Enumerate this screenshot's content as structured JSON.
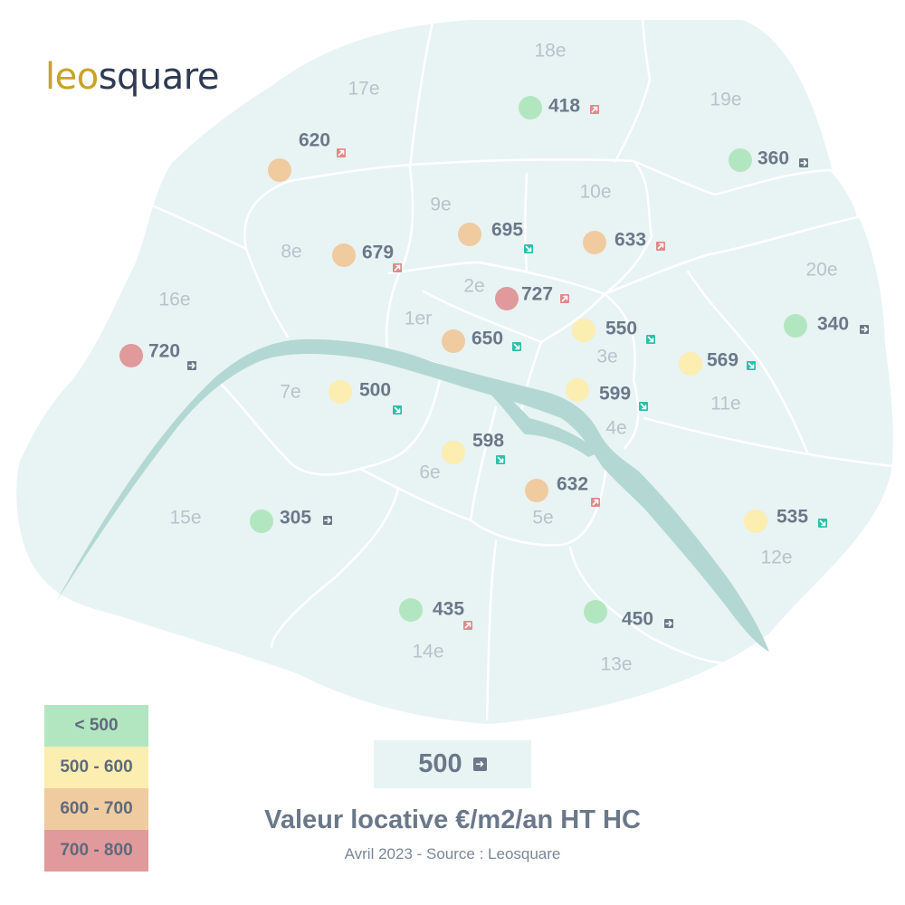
{
  "logo": {
    "part1": "leo",
    "part2": "square"
  },
  "colors": {
    "land": "#e8f3f4",
    "river": "#b3d8d4",
    "border": "#ffffff",
    "lt500": "#b2e6c0",
    "500_600": "#fcedb0",
    "600_700": "#f0cba0",
    "700_800": "#e09a9b",
    "up": "#e08a8a",
    "down": "#2fbfa8",
    "flat": "#6b7889"
  },
  "map": {
    "labels": [
      {
        "id": "18e",
        "text": "18e"
      },
      {
        "id": "17e",
        "text": "17e"
      },
      {
        "id": "19e",
        "text": "19e"
      },
      {
        "id": "9e",
        "text": "9e"
      },
      {
        "id": "10e",
        "text": "10e"
      },
      {
        "id": "8e",
        "text": "8e"
      },
      {
        "id": "16e",
        "text": "16e"
      },
      {
        "id": "2e",
        "text": "2e"
      },
      {
        "id": "20e",
        "text": "20e"
      },
      {
        "id": "1er",
        "text": "1er"
      },
      {
        "id": "3e",
        "text": "3e"
      },
      {
        "id": "7e",
        "text": "7e"
      },
      {
        "id": "11e",
        "text": "11e"
      },
      {
        "id": "4e",
        "text": "4e"
      },
      {
        "id": "6e",
        "text": "6e"
      },
      {
        "id": "15e",
        "text": "15e"
      },
      {
        "id": "5e",
        "text": "5e"
      },
      {
        "id": "12e",
        "text": "12e"
      },
      {
        "id": "14e",
        "text": "14e"
      },
      {
        "id": "13e",
        "text": "13e"
      }
    ],
    "markers": [
      {
        "arr": "18e",
        "value": "418",
        "band": "lt500",
        "trend": "up"
      },
      {
        "arr": "17e",
        "value": "620",
        "band": "600_700",
        "trend": "up"
      },
      {
        "arr": "19e",
        "value": "360",
        "band": "lt500",
        "trend": "flat"
      },
      {
        "arr": "9e",
        "value": "695",
        "band": "600_700",
        "trend": "down"
      },
      {
        "arr": "10e",
        "value": "633",
        "band": "600_700",
        "trend": "up"
      },
      {
        "arr": "8e",
        "value": "679",
        "band": "600_700",
        "trend": "up"
      },
      {
        "arr": "2e",
        "value": "727",
        "band": "700_800",
        "trend": "up"
      },
      {
        "arr": "20e",
        "value": "340",
        "band": "lt500",
        "trend": "flat"
      },
      {
        "arr": "16e",
        "value": "720",
        "band": "700_800",
        "trend": "flat"
      },
      {
        "arr": "3e",
        "value": "550",
        "band": "500_600",
        "trend": "down"
      },
      {
        "arr": "1er",
        "value": "650",
        "band": "600_700",
        "trend": "down"
      },
      {
        "arr": "11e",
        "value": "569",
        "band": "500_600",
        "trend": "down"
      },
      {
        "arr": "7e",
        "value": "500",
        "band": "500_600",
        "trend": "down"
      },
      {
        "arr": "4e",
        "value": "599",
        "band": "500_600",
        "trend": "down"
      },
      {
        "arr": "6e",
        "value": "598",
        "band": "500_600",
        "trend": "down"
      },
      {
        "arr": "5e",
        "value": "632",
        "band": "600_700",
        "trend": "up"
      },
      {
        "arr": "15e",
        "value": "305",
        "band": "lt500",
        "trend": "flat"
      },
      {
        "arr": "12e",
        "value": "535",
        "band": "500_600",
        "trend": "down"
      },
      {
        "arr": "14e",
        "value": "435",
        "band": "lt500",
        "trend": "up"
      },
      {
        "arr": "13e",
        "value": "450",
        "band": "lt500",
        "trend": "flat"
      }
    ]
  },
  "legend": [
    {
      "label": "< 500",
      "band": "lt500"
    },
    {
      "label": "500 - 600",
      "band": "500_600"
    },
    {
      "label": "600 - 700",
      "band": "600_700"
    },
    {
      "label": "700 - 800",
      "band": "700_800"
    }
  ],
  "key": {
    "value": "500"
  },
  "title": "Valeur locative €/m2/an HT HC",
  "source": "Avril 2023 - Source : Leosquare"
}
